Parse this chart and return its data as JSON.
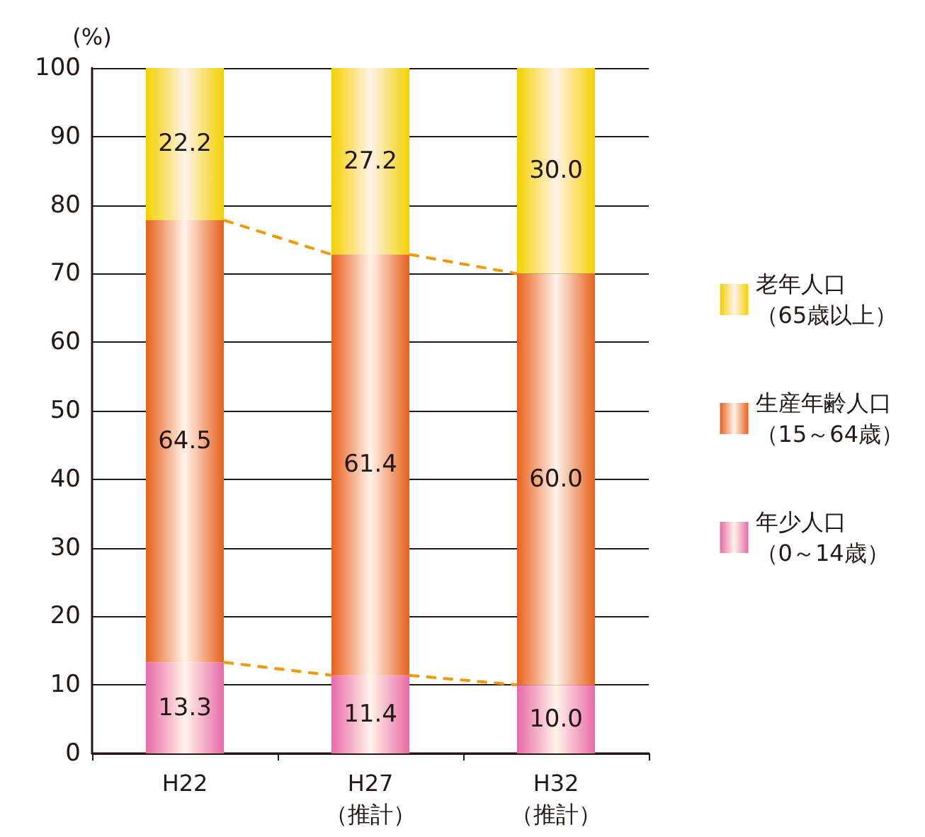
{
  "chart_data": {
    "type": "bar",
    "ylabel": "(%)",
    "categories": [
      "H22",
      "H27\n（推計）",
      "H32\n（推計）"
    ],
    "stacked": true,
    "grid": "y",
    "legend": "right",
    "ylim": [
      0,
      100
    ],
    "yticks": [
      0,
      10,
      20,
      30,
      40,
      50,
      60,
      70,
      80,
      90,
      100
    ],
    "series": [
      {
        "name": "年少人口（0～14歳）",
        "color": "#e86aa6",
        "values": [
          13.3,
          11.4,
          10.0
        ],
        "value_labels": [
          "13.3",
          "11.4",
          "10.0"
        ]
      },
      {
        "name": "生産年齢人口（15～64歳）",
        "color": "#e8601c",
        "values": [
          64.5,
          61.4,
          60.0
        ],
        "value_labels": [
          "64.5",
          "61.4",
          "60.0"
        ]
      },
      {
        "name": "老年人口（65歳以上）",
        "color": "#f5d000",
        "values": [
          22.2,
          27.2,
          30.0
        ],
        "value_labels": [
          "22.2",
          "27.2",
          "30.0"
        ]
      }
    ]
  }
}
